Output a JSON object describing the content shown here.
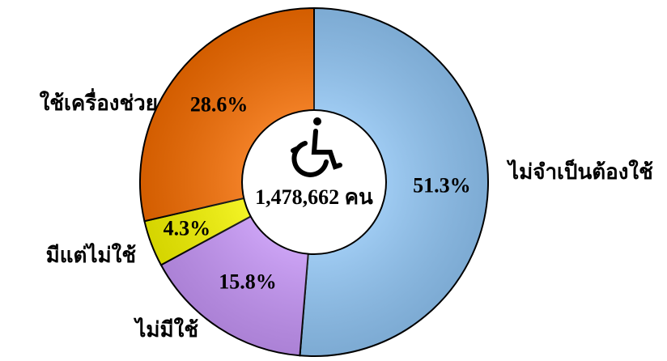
{
  "chart_data": {
    "type": "donut",
    "categories": [
      "ไม่จำเป็นต้องใช้",
      "ไม่มีใช้",
      "มีแต่ไม่ใช้",
      "ใช้เครื่องช่วย"
    ],
    "values": [
      51.3,
      15.8,
      4.3,
      28.6
    ],
    "value_labels": [
      "51.3%",
      "15.8%",
      "4.3%",
      "28.6%"
    ],
    "colors": [
      "#8ec2f0",
      "#c393f3",
      "#f2f200",
      "#f06a00"
    ],
    "center_label": "1,478,662 คน"
  }
}
